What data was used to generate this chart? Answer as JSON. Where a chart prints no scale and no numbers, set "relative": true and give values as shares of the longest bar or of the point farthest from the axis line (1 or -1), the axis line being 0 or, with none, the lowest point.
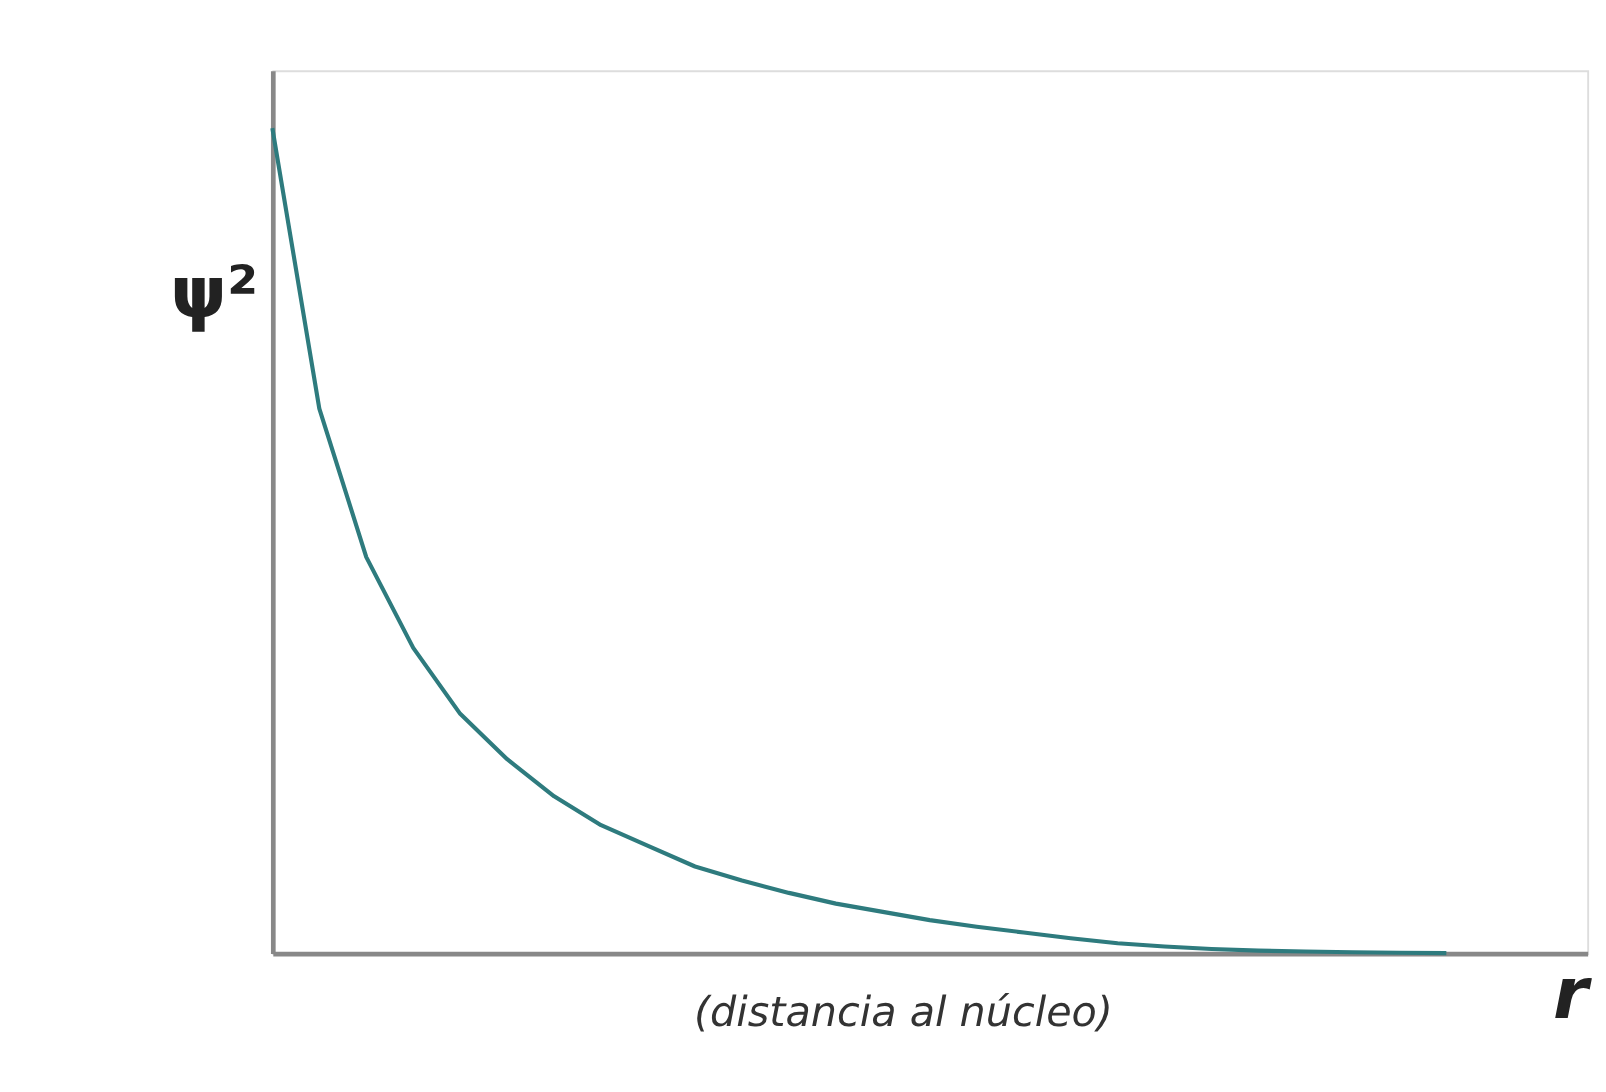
{
  "chart_data": {
    "type": "line",
    "relative": true,
    "ylabel": "ψ²",
    "xlabel": "r",
    "annotations": [
      "(distancia al núcleo)"
    ],
    "categories": [
      null,
      null,
      null,
      null,
      null,
      null,
      null,
      null,
      null,
      null,
      null,
      null,
      null,
      null,
      null,
      null,
      null,
      null,
      null,
      null,
      null,
      null,
      null,
      null,
      null,
      null,
      null,
      null,
      null
    ],
    "series": [
      {
        "color": "#2e7b7e",
        "values": [
          1.0,
          0.66,
          0.48,
          0.37,
          0.29,
          0.235,
          0.19,
          0.155,
          0.13,
          0.105,
          0.088,
          0.073,
          0.06,
          0.05,
          0.04,
          0.032,
          0.025,
          0.018,
          0.012,
          0.008,
          0.005,
          0.003,
          0.002,
          0.001,
          0.0005,
          0,
          null,
          null,
          null
        ]
      }
    ],
    "grid": false,
    "marker": "none",
    "line_style": "solid"
  }
}
